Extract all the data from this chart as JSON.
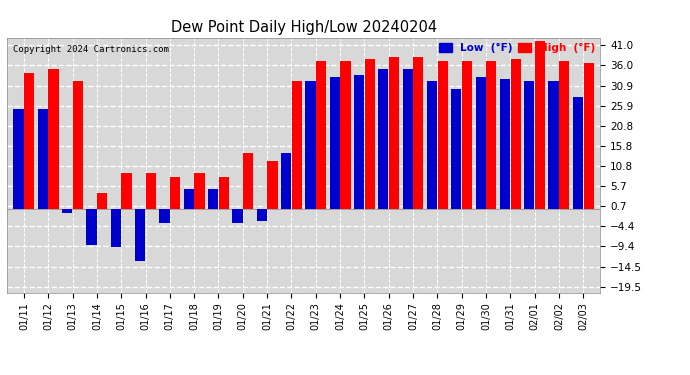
{
  "title": "Dew Point Daily High/Low 20240204",
  "copyright": "Copyright 2024 Cartronics.com",
  "background_color": "#ffffff",
  "plot_bg_color": "#d8d8d8",
  "grid_color": "#ffffff",
  "dates": [
    "01/11",
    "01/12",
    "01/13",
    "01/14",
    "01/15",
    "01/16",
    "01/17",
    "01/18",
    "01/19",
    "01/20",
    "01/21",
    "01/22",
    "01/23",
    "01/24",
    "01/25",
    "01/26",
    "01/27",
    "01/28",
    "01/29",
    "01/30",
    "01/31",
    "02/01",
    "02/02",
    "02/03"
  ],
  "high": [
    34.0,
    35.0,
    32.0,
    4.0,
    9.0,
    9.0,
    8.0,
    9.0,
    8.0,
    14.0,
    12.0,
    32.0,
    37.0,
    37.0,
    37.5,
    38.0,
    38.0,
    37.0,
    37.0,
    37.0,
    37.5,
    42.0,
    37.0,
    36.5
  ],
  "low": [
    25.0,
    25.0,
    -1.0,
    -9.0,
    -9.5,
    -13.0,
    -3.5,
    5.0,
    5.0,
    -3.5,
    -3.0,
    14.0,
    32.0,
    33.0,
    33.5,
    35.0,
    35.0,
    32.0,
    30.0,
    33.0,
    32.5,
    32.0,
    32.0,
    28.0
  ],
  "high_color": "#ff0000",
  "low_color": "#0000cc",
  "yticks": [
    -19.5,
    -14.5,
    -9.4,
    -4.4,
    0.7,
    5.7,
    10.8,
    15.8,
    20.8,
    25.9,
    30.9,
    36.0,
    41.0
  ],
  "ylim": [
    -21,
    43
  ],
  "legend_low_label": "Low  (°F)",
  "legend_high_label": "High  (°F)"
}
